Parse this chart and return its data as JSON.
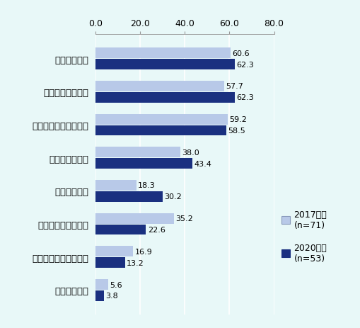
{
  "categories": [
    "新製品等創出",
    "個々の顧客ニーズ",
    "マーケティング・販売",
    "品質安定・向上",
    "熟練技術継承",
    "業務効率化・最適化",
    "賃金上昇・労働力不足",
    "参入障壁低下"
  ],
  "values_2017": [
    60.6,
    57.7,
    59.2,
    38.0,
    18.3,
    35.2,
    16.9,
    5.6
  ],
  "values_2020": [
    62.3,
    62.3,
    58.5,
    43.4,
    30.2,
    22.6,
    13.2,
    3.8
  ],
  "color_2017": "#b8c9e8",
  "color_2020": "#1a3080",
  "background_color": "#e8f8f8",
  "xlim": [
    0,
    80
  ],
  "xticks": [
    0.0,
    20.0,
    40.0,
    60.0,
    80.0
  ],
  "legend_2017_line1": "2017年度",
  "legend_2017_line2": "(n=71)",
  "legend_2020_line1": "2020年度",
  "legend_2020_line2": "(n=53)",
  "bar_height": 0.32,
  "value_fontsize": 8.0,
  "label_fontsize": 9.5,
  "tick_fontsize": 9.0,
  "legend_fontsize": 9.0
}
